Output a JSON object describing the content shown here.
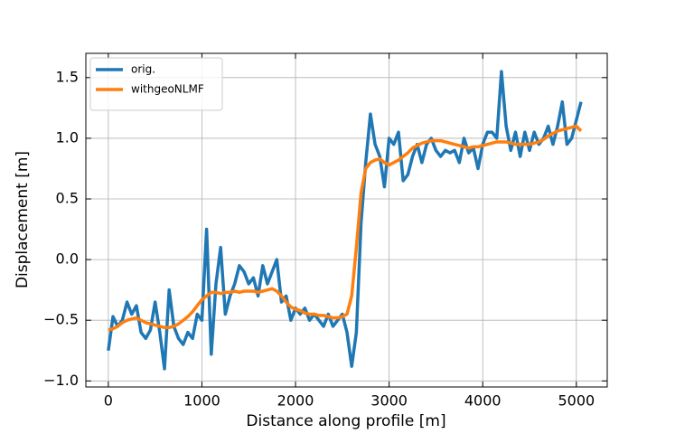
{
  "chart_data": {
    "type": "line",
    "xlabel": "Distance along profile [m]",
    "ylabel": "Displacement [m]",
    "x": [
      0,
      50,
      100,
      150,
      200,
      250,
      300,
      350,
      400,
      450,
      500,
      550,
      600,
      650,
      700,
      750,
      800,
      850,
      900,
      950,
      1000,
      1050,
      1100,
      1150,
      1200,
      1250,
      1300,
      1350,
      1400,
      1450,
      1500,
      1550,
      1600,
      1650,
      1700,
      1750,
      1800,
      1850,
      1900,
      1950,
      2000,
      2050,
      2100,
      2150,
      2200,
      2250,
      2300,
      2350,
      2400,
      2450,
      2500,
      2550,
      2600,
      2650,
      2700,
      2750,
      2800,
      2850,
      2900,
      2950,
      3000,
      3050,
      3100,
      3150,
      3200,
      3250,
      3300,
      3350,
      3400,
      3450,
      3500,
      3550,
      3600,
      3650,
      3700,
      3750,
      3800,
      3850,
      3900,
      3950,
      4000,
      4050,
      4100,
      4150,
      4200,
      4250,
      4300,
      4350,
      4400,
      4450,
      4500,
      4550,
      4600,
      4650,
      4700,
      4750,
      4800,
      4850,
      4900,
      4950,
      5000,
      5050
    ],
    "series": [
      {
        "name": "orig.",
        "color": "#1f77b4",
        "values": [
          -0.75,
          -0.47,
          -0.55,
          -0.5,
          -0.35,
          -0.45,
          -0.38,
          -0.6,
          -0.65,
          -0.58,
          -0.35,
          -0.6,
          -0.9,
          -0.25,
          -0.55,
          -0.65,
          -0.7,
          -0.6,
          -0.65,
          -0.45,
          -0.5,
          0.25,
          -0.78,
          -0.2,
          0.1,
          -0.45,
          -0.3,
          -0.2,
          -0.05,
          -0.1,
          -0.2,
          -0.15,
          -0.3,
          -0.05,
          -0.2,
          -0.1,
          0.0,
          -0.35,
          -0.3,
          -0.5,
          -0.4,
          -0.45,
          -0.4,
          -0.5,
          -0.45,
          -0.5,
          -0.55,
          -0.45,
          -0.55,
          -0.5,
          -0.45,
          -0.6,
          -0.88,
          -0.6,
          0.3,
          0.8,
          1.2,
          0.95,
          0.85,
          0.6,
          1.0,
          0.95,
          1.05,
          0.65,
          0.7,
          0.85,
          0.95,
          0.8,
          0.95,
          1.0,
          0.9,
          0.85,
          0.9,
          0.88,
          0.9,
          0.8,
          1.0,
          0.88,
          0.92,
          0.75,
          0.95,
          1.05,
          1.05,
          1.0,
          1.55,
          1.1,
          0.9,
          1.05,
          0.85,
          1.05,
          0.9,
          1.05,
          0.95,
          1.0,
          1.1,
          0.95,
          1.1,
          1.3,
          0.95,
          1.0,
          1.15,
          1.3
        ]
      },
      {
        "name": "withgeoNLMF",
        "color": "#ff7f0e",
        "values": [
          -0.58,
          -0.57,
          -0.55,
          -0.52,
          -0.5,
          -0.49,
          -0.48,
          -0.5,
          -0.52,
          -0.53,
          -0.54,
          -0.55,
          -0.56,
          -0.56,
          -0.55,
          -0.53,
          -0.5,
          -0.47,
          -0.43,
          -0.38,
          -0.33,
          -0.3,
          -0.27,
          -0.27,
          -0.28,
          -0.27,
          -0.27,
          -0.26,
          -0.27,
          -0.26,
          -0.26,
          -0.26,
          -0.27,
          -0.26,
          -0.25,
          -0.24,
          -0.26,
          -0.3,
          -0.35,
          -0.39,
          -0.41,
          -0.42,
          -0.44,
          -0.45,
          -0.45,
          -0.46,
          -0.46,
          -0.47,
          -0.48,
          -0.48,
          -0.47,
          -0.45,
          -0.3,
          0.1,
          0.55,
          0.75,
          0.8,
          0.82,
          0.83,
          0.8,
          0.78,
          0.8,
          0.82,
          0.85,
          0.88,
          0.92,
          0.94,
          0.96,
          0.97,
          0.98,
          0.98,
          0.98,
          0.97,
          0.96,
          0.95,
          0.94,
          0.93,
          0.92,
          0.93,
          0.93,
          0.94,
          0.95,
          0.96,
          0.97,
          0.97,
          0.97,
          0.96,
          0.95,
          0.95,
          0.95,
          0.95,
          0.96,
          0.97,
          0.99,
          1.02,
          1.04,
          1.06,
          1.07,
          1.08,
          1.09,
          1.1,
          1.06
        ]
      }
    ],
    "xlim": [
      -240,
      5330
    ],
    "xticks": [
      0,
      1000,
      2000,
      3000,
      4000,
      5000
    ],
    "ylim": [
      -1.05,
      1.7
    ],
    "yticks": [
      {
        "value": -1,
        "label": "−1.0"
      },
      {
        "value": -0.5,
        "label": "−0.5"
      },
      {
        "value": 0,
        "label": "0.0"
      },
      {
        "value": 0.5,
        "label": "0.5"
      },
      {
        "value": 1,
        "label": "1.0"
      },
      {
        "value": 1.5,
        "label": "1.5"
      }
    ],
    "grid": true,
    "legend": "upper-left"
  }
}
